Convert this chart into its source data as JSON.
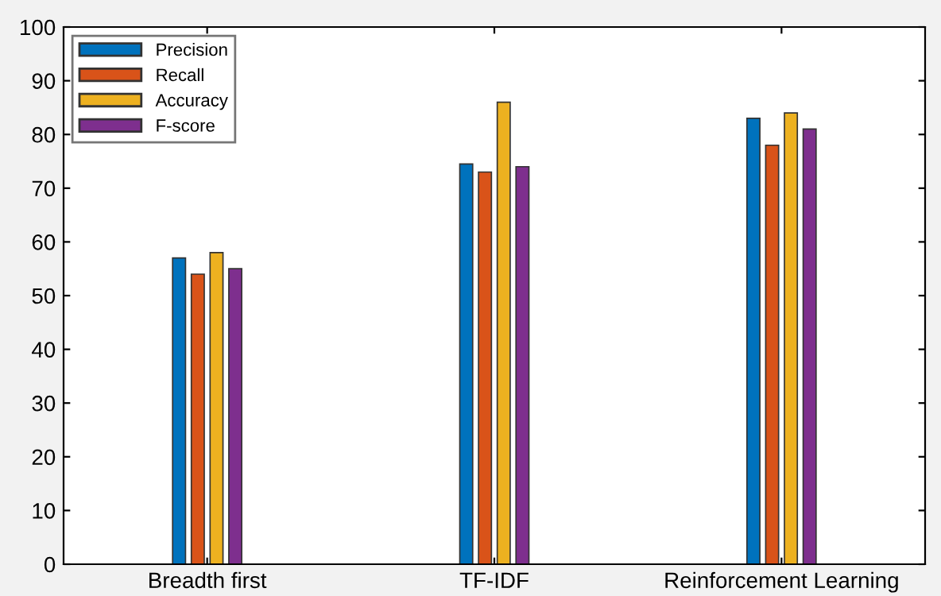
{
  "chart_data": {
    "type": "bar",
    "categories": [
      "Breadth first",
      "TF-IDF",
      "Reinforcement Learning"
    ],
    "series": [
      {
        "name": "Precision",
        "color": "#0072bd",
        "values": [
          57,
          74.5,
          83
        ]
      },
      {
        "name": "Recall",
        "color": "#d95319",
        "values": [
          54,
          73,
          78
        ]
      },
      {
        "name": "Accuracy",
        "color": "#edb120",
        "values": [
          58,
          86,
          84
        ]
      },
      {
        "name": "F-score",
        "color": "#7e2f8e",
        "values": [
          55,
          74,
          81
        ]
      }
    ],
    "ylim": [
      0,
      100
    ],
    "yticks": [
      0,
      10,
      20,
      30,
      40,
      50,
      60,
      70,
      80,
      90,
      100
    ],
    "legend": "top left",
    "grid": false
  }
}
